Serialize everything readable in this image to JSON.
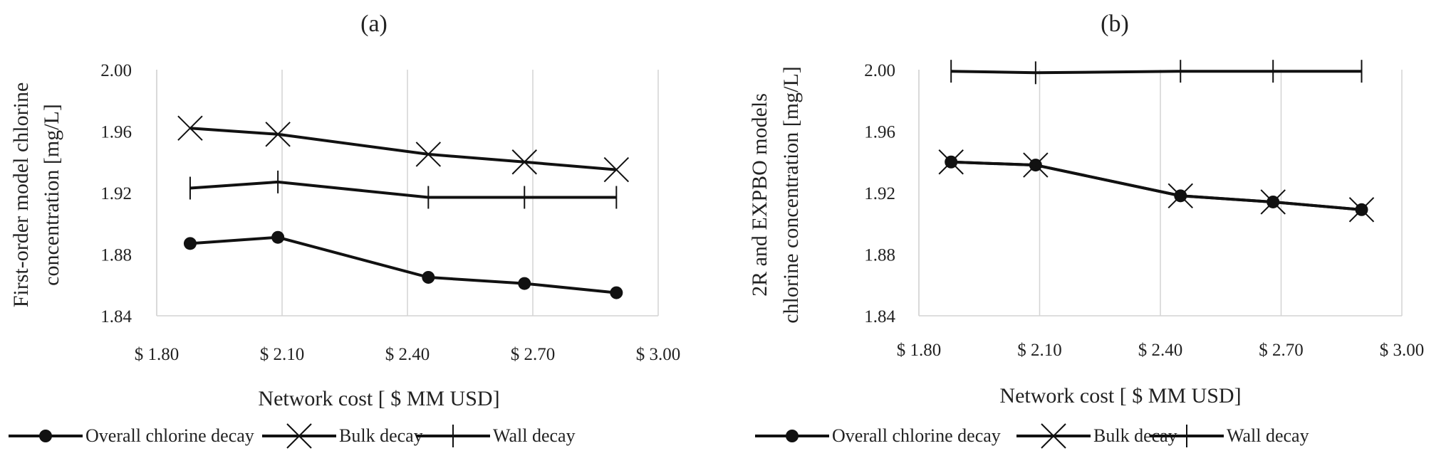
{
  "chart_data": [
    {
      "type": "line",
      "title": "(a)",
      "xlabel": "Network cost [ $ MM USD]",
      "ylabel_lines": [
        "First-order model chlorine",
        "concentration [mg/L]"
      ],
      "xlim": [
        1.8,
        3.0
      ],
      "ylim": [
        1.84,
        2.0
      ],
      "xticks": [
        1.8,
        2.1,
        2.4,
        2.7,
        3.0
      ],
      "xtick_labels": [
        "$ 1.80",
        "$ 2.10",
        "$ 2.40",
        "$ 2.70",
        "$ 3.00"
      ],
      "yticks": [
        1.84,
        1.88,
        1.92,
        1.96,
        2.0
      ],
      "ytick_labels": [
        "1.84",
        "1.88",
        "1.92",
        "1.96",
        "2.00"
      ],
      "grid": "vertical",
      "legend_position": "bottom",
      "series": [
        {
          "name": "Overall chlorine decay",
          "marker": "dot",
          "x": [
            1.88,
            2.09,
            2.45,
            2.68,
            2.9
          ],
          "y": [
            1.887,
            1.891,
            1.865,
            1.861,
            1.855
          ]
        },
        {
          "name": "Bulk decay",
          "marker": "x",
          "x": [
            1.88,
            2.09,
            2.45,
            2.68,
            2.9
          ],
          "y": [
            1.962,
            1.958,
            1.945,
            1.94,
            1.935
          ]
        },
        {
          "name": "Wall decay",
          "marker": "plus",
          "x": [
            1.88,
            2.09,
            2.45,
            2.68,
            2.9
          ],
          "y": [
            1.923,
            1.927,
            1.917,
            1.917,
            1.917
          ]
        }
      ]
    },
    {
      "type": "line",
      "title": "(b)",
      "xlabel": "Network cost [ $ MM USD]",
      "ylabel_lines": [
        "2R and EXPBO models",
        "chlorine concentration [mg/L]"
      ],
      "xlim": [
        1.8,
        3.0
      ],
      "ylim": [
        1.84,
        2.0
      ],
      "xticks": [
        1.8,
        2.1,
        2.4,
        2.7,
        3.0
      ],
      "xtick_labels": [
        "$ 1.80",
        "$ 2.10",
        "$ 2.40",
        "$ 2.70",
        "$ 3.00"
      ],
      "yticks": [
        1.84,
        1.88,
        1.92,
        1.96,
        2.0
      ],
      "ytick_labels": [
        "1.84",
        "1.88",
        "1.92",
        "1.96",
        "2.00"
      ],
      "grid": "vertical",
      "legend_position": "bottom",
      "series": [
        {
          "name": "Overall chlorine decay",
          "marker": "dot",
          "x": [
            1.88,
            2.09,
            2.45,
            2.68,
            2.9
          ],
          "y": [
            1.94,
            1.938,
            1.918,
            1.914,
            1.909
          ]
        },
        {
          "name": "Bulk decay",
          "marker": "x",
          "x": [
            1.88,
            2.09,
            2.45,
            2.68,
            2.9
          ],
          "y": [
            1.94,
            1.938,
            1.918,
            1.914,
            1.909
          ]
        },
        {
          "name": "Wall decay",
          "marker": "plus",
          "x": [
            1.88,
            2.09,
            2.45,
            2.68,
            2.9
          ],
          "y": [
            1.999,
            1.998,
            1.999,
            1.999,
            1.999
          ]
        }
      ]
    }
  ]
}
